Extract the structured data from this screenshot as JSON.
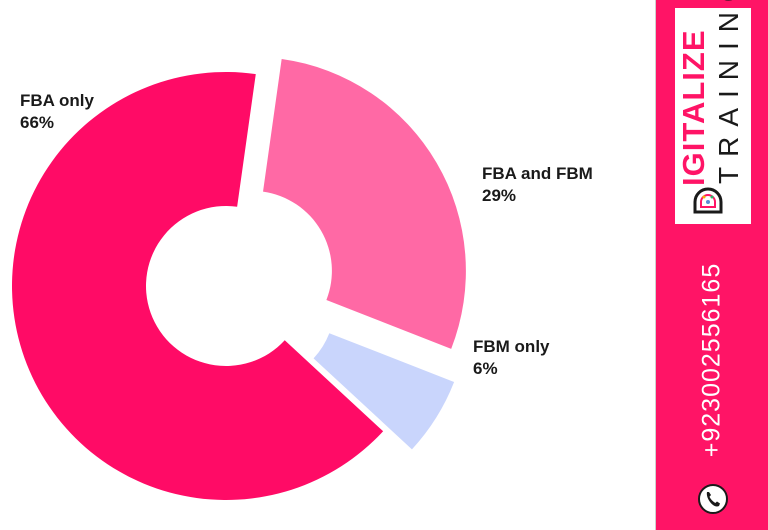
{
  "chart_data": {
    "type": "pie",
    "style": "donut, exploded slices",
    "slices": [
      {
        "label": "FBA only",
        "value": 66,
        "display": "66%",
        "color": "#ff0b66"
      },
      {
        "label": "FBA and FBM",
        "value": 29,
        "display": "29%",
        "color": "#ff69a5"
      },
      {
        "label": "FBM only",
        "value": 6,
        "display": "6%",
        "color": "#c9d5fc"
      }
    ]
  },
  "brand": {
    "logo_word1": "IGITALIZE",
    "logo_word2": "TRAINING",
    "logo_initial": "D",
    "phone": "+923002556165",
    "phone_icon": "phone-icon",
    "strip_color": "#ff1466"
  }
}
